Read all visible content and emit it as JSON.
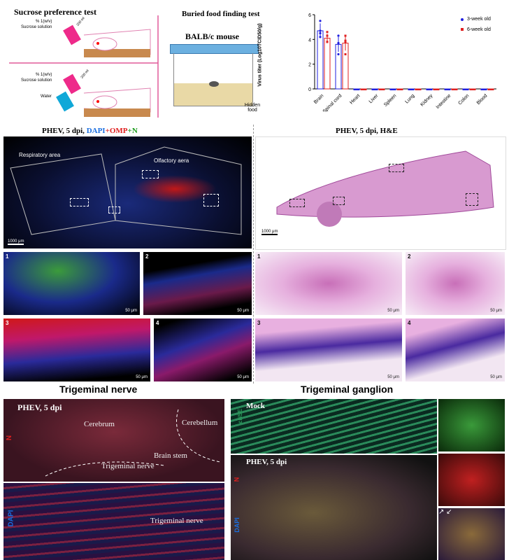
{
  "sucrose": {
    "title": "Sucrose preference test",
    "top_label_1": "% 1(w/v)",
    "top_label_2": "Sucrose solution",
    "volume": "200 ml",
    "bottom_label_1": "% 1(w/v)",
    "bottom_label_2": "Sucrose solution",
    "water": "Water",
    "volume2": "200 ml"
  },
  "buried": {
    "title": "Buried food finding test",
    "mouse": "BALB/c mouse",
    "hidden_food": "Hidden food"
  },
  "chart_data": {
    "type": "bar",
    "ylabel": "Virus titer (Log10TCID50/g)",
    "ylim": [
      0,
      6
    ],
    "yticks": [
      0,
      2,
      4,
      6
    ],
    "categories": [
      "Brain",
      "Spinal cord",
      "Heart",
      "Liver",
      "Spleen",
      "Lung",
      "Kidney",
      "Intestine",
      "Colon",
      "Blood"
    ],
    "legend_position": "top-right",
    "series": [
      {
        "name": "3-week old",
        "color": "#1f1fe0",
        "values": [
          4.7,
          3.6,
          0,
          0,
          0,
          0,
          0,
          0,
          0,
          0
        ],
        "error": [
          0.6,
          0.6,
          0,
          0,
          0,
          0,
          0,
          0,
          0,
          0
        ],
        "points": [
          [
            5.5,
            4.7,
            4.5,
            4.2
          ],
          [
            4.3,
            3.7,
            3.7,
            2.8
          ]
        ]
      },
      {
        "name": "6-week old",
        "color": "#e02020",
        "values": [
          4.1,
          3.7,
          0,
          0,
          0,
          0,
          0,
          0,
          0,
          0
        ],
        "error": [
          0.35,
          0.6,
          0,
          0,
          0,
          0,
          0,
          0,
          0,
          0
        ],
        "points": [
          [
            4.6,
            4.3,
            3.8,
            3.8
          ],
          [
            4.3,
            3.9,
            3.8,
            2.8
          ]
        ]
      }
    ]
  },
  "if": {
    "title_prefix": "PHEV, 5 dpi, ",
    "dapi": "DAPI",
    "plus1": "+",
    "omp": "OMP",
    "plus2": "+",
    "n": "N",
    "resp": "Respiratory area",
    "olf": "Olfactory aera",
    "scale": "1000 μm",
    "small_scale": "50 μm",
    "labels": [
      "1",
      "2",
      "3",
      "4"
    ]
  },
  "he": {
    "title": "PHEV, 5 dpi, H&E",
    "scale": "1000 μm",
    "small_scale": "50 μm",
    "labels": [
      "1",
      "2",
      "3",
      "4"
    ]
  },
  "tn": {
    "title": "Trigeminal nerve",
    "sub": "PHEV, 5 dpi",
    "cerebrum": "Cerebrum",
    "cerebellum": "Cerebellum",
    "brainstem": "Brain stem",
    "tnerve": "Trigeminal nerve",
    "tnerve2": "Trigeminal nerve",
    "n": "N",
    "dapi": "DAPI"
  },
  "tg": {
    "title": "Trigeminal ganglion",
    "mock": "Mock",
    "phev": "PHEV, 5 dpi",
    "nse": "cNSE",
    "n": "N",
    "dapi": "DAPI"
  }
}
